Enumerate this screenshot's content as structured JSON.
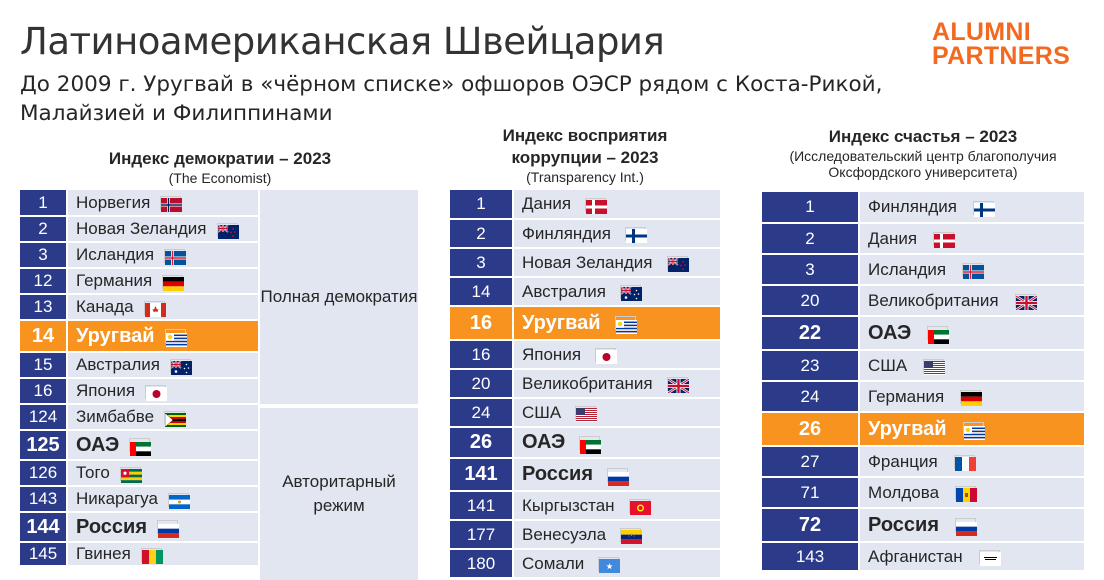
{
  "title": "Латиноамериканская Швейцария",
  "subtitle": "До 2009 г. Уругвай в «чёрном списке» офшоров ОЭСР рядом с Коста-Рикой, Малайзией и Филиппинами",
  "logo": {
    "line1": "ALUMNI",
    "line2": "PARTNERS",
    "color": "#f26a21"
  },
  "colors": {
    "num_bg": "#2b3b8a",
    "row_bg": "#e1e6f0",
    "highlight": "#f7931e"
  },
  "panel1": {
    "title": "Индекс демократии – 2023",
    "source": "(The Economist)",
    "cat1": "Полная демократия",
    "cat2": "Авторитарный режим",
    "rows": [
      {
        "rank": "1",
        "country": "Норвегия",
        "flag": "norway-flag"
      },
      {
        "rank": "2",
        "country": "Новая Зеландия",
        "flag": "new-zealand-flag"
      },
      {
        "rank": "3",
        "country": "Исландия",
        "flag": "iceland-flag"
      },
      {
        "rank": "12",
        "country": "Германия",
        "flag": "germany-flag"
      },
      {
        "rank": "13",
        "country": "Канада",
        "flag": "canada-flag"
      },
      {
        "rank": "14",
        "country": "Уругвай",
        "flag": "uruguay-flag"
      },
      {
        "rank": "15",
        "country": "Австралия",
        "flag": "australia-flag"
      },
      {
        "rank": "16",
        "country": "Япония",
        "flag": "japan-flag"
      },
      {
        "rank": "124",
        "country": "Зимбабве",
        "flag": "zimbabwe-flag"
      },
      {
        "rank": "125",
        "country": "ОАЭ",
        "flag": "uae-flag"
      },
      {
        "rank": "126",
        "country": "Того",
        "flag": "togo-flag"
      },
      {
        "rank": "143",
        "country": "Никарагуа",
        "flag": "nicaragua-flag"
      },
      {
        "rank": "144",
        "country": "Россия",
        "flag": "russia-flag"
      },
      {
        "rank": "145",
        "country": "Гвинея",
        "flag": "guinea-flag"
      }
    ]
  },
  "panel2": {
    "title": "Индекс восприятия коррупции – 2023",
    "source": "(Transparency Int.)",
    "rows": [
      {
        "rank": "1",
        "country": "Дания",
        "flag": "denmark-flag"
      },
      {
        "rank": "2",
        "country": "Финляндия",
        "flag": "finland-flag"
      },
      {
        "rank": "3",
        "country": "Новая Зеландия",
        "flag": "new-zealand-flag"
      },
      {
        "rank": "14",
        "country": "Австралия",
        "flag": "australia-flag"
      },
      {
        "rank": "16",
        "country": "Уругвай",
        "flag": "uruguay-flag"
      },
      {
        "rank": "16",
        "country": "Япония",
        "flag": "japan-flag"
      },
      {
        "rank": "20",
        "country": "Великобритания",
        "flag": "uk-flag"
      },
      {
        "rank": "24",
        "country": "США",
        "flag": "usa-flag"
      },
      {
        "rank": "26",
        "country": "ОАЭ",
        "flag": "uae-flag"
      },
      {
        "rank": "141",
        "country": "Россия",
        "flag": "russia-flag"
      },
      {
        "rank": "141",
        "country": "Кыргызстан",
        "flag": "kyrgyzstan-flag"
      },
      {
        "rank": "177",
        "country": "Венесуэла",
        "flag": "venezuela-flag"
      },
      {
        "rank": "180",
        "country": "Сомали",
        "flag": "somalia-flag"
      }
    ]
  },
  "panel3": {
    "title": "Индекс счастья – 2023",
    "source": "(Исследовательский центр благополучия Оксфордского университета)",
    "rows": [
      {
        "rank": "1",
        "country": "Финляндия",
        "flag": "finland-flag"
      },
      {
        "rank": "2",
        "country": "Дания",
        "flag": "denmark-flag"
      },
      {
        "rank": "3",
        "country": "Исландия",
        "flag": "iceland-flag"
      },
      {
        "rank": "20",
        "country": "Великобритания",
        "flag": "uk-flag"
      },
      {
        "rank": "22",
        "country": "ОАЭ",
        "flag": "uae-flag"
      },
      {
        "rank": "23",
        "country": "США",
        "flag": "usa-flag"
      },
      {
        "rank": "24",
        "country": "Германия",
        "flag": "germany-flag"
      },
      {
        "rank": "26",
        "country": "Уругвай",
        "flag": "uruguay-flag"
      },
      {
        "rank": "27",
        "country": "Франция",
        "flag": "france-flag"
      },
      {
        "rank": "71",
        "country": "Молдова",
        "flag": "moldova-flag"
      },
      {
        "rank": "72",
        "country": "Россия",
        "flag": "russia-flag"
      },
      {
        "rank": "143",
        "country": "Афганистан",
        "flag": "afghanistan-flag"
      }
    ]
  }
}
